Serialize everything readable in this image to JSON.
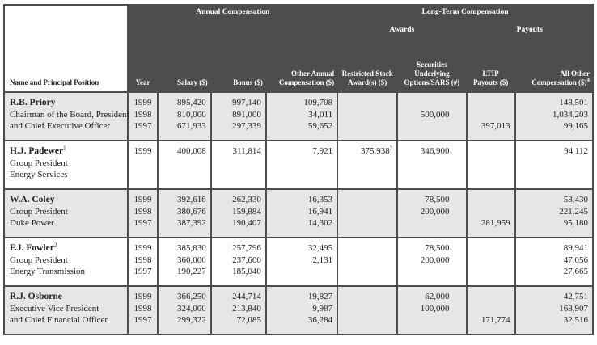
{
  "header": {
    "groups": {
      "annual": "Annual Compensation",
      "long_term": "Long-Term Compensation",
      "awards": "Awards",
      "payouts": "Payouts"
    },
    "columns": [
      "Name and Principal Position",
      "Year",
      "Salary ($)",
      "Bonus ($)",
      "Other Annual Compensation ($)",
      "Restricted Stock Award(s) ($)",
      "Securities Underlying Options/SARS (#)",
      "LTIP Payouts ($)",
      {
        "text": "All Other Compensation ($)",
        "note": "4"
      }
    ]
  },
  "executives": [
    {
      "name": "R.B. Priory",
      "title": [
        "Chairman of the Board, President",
        "and Chief Executive Officer"
      ],
      "rows": [
        [
          "1999",
          "895,420",
          "997,140",
          "109,708",
          null,
          null,
          null,
          "148,501"
        ],
        [
          "1998",
          "810,000",
          "891,000",
          "34,011",
          null,
          "500,000",
          null,
          "1,034,203"
        ],
        [
          "1997",
          "671,933",
          "297,339",
          "59,652",
          null,
          null,
          "397,013",
          "99,165"
        ]
      ]
    },
    {
      "name": "H.J. Padewer",
      "note": "1",
      "title": [
        "Group President",
        "Energy Services"
      ],
      "rows": [
        [
          "1999",
          "400,008",
          "311,814",
          "7,921",
          {
            "text": "375,938",
            "note": "3"
          },
          "346,900",
          null,
          "94,112"
        ]
      ]
    },
    {
      "name": "W.A. Coley",
      "title": [
        "Group President",
        "Duke Power"
      ],
      "rows": [
        [
          "1999",
          "392,616",
          "262,330",
          "16,353",
          null,
          "78,500",
          null,
          "58,430"
        ],
        [
          "1998",
          "380,676",
          "159,884",
          "16,941",
          null,
          "200,000",
          null,
          "221,245"
        ],
        [
          "1997",
          "387,392",
          "190,407",
          "14,302",
          null,
          null,
          "281,959",
          "95,180"
        ]
      ]
    },
    {
      "name": "F.J. Fowler",
      "note": "2",
      "title": [
        "Group President",
        "Energy Transmission"
      ],
      "rows": [
        [
          "1999",
          "385,830",
          "257,796",
          "32,495",
          null,
          "78,500",
          null,
          "89,941"
        ],
        [
          "1998",
          "360,000",
          "237,600",
          "2,131",
          null,
          "200,000",
          null,
          "47,056"
        ],
        [
          "1997",
          "190,227",
          "185,040",
          null,
          null,
          null,
          null,
          "27,665"
        ]
      ]
    },
    {
      "name": "R.J. Osborne",
      "title": [
        "Executive Vice President",
        "and Chief Financial Officer"
      ],
      "rows": [
        [
          "1999",
          "366,250",
          "244,714",
          "19,827",
          null,
          "62,000",
          null,
          "42,751"
        ],
        [
          "1998",
          "324,000",
          "213,840",
          "9,987",
          null,
          "100,000",
          null,
          "168,907"
        ],
        [
          "1997",
          "299,322",
          "72,085",
          "36,284",
          null,
          null,
          "171,774",
          "32,516"
        ]
      ]
    }
  ]
}
